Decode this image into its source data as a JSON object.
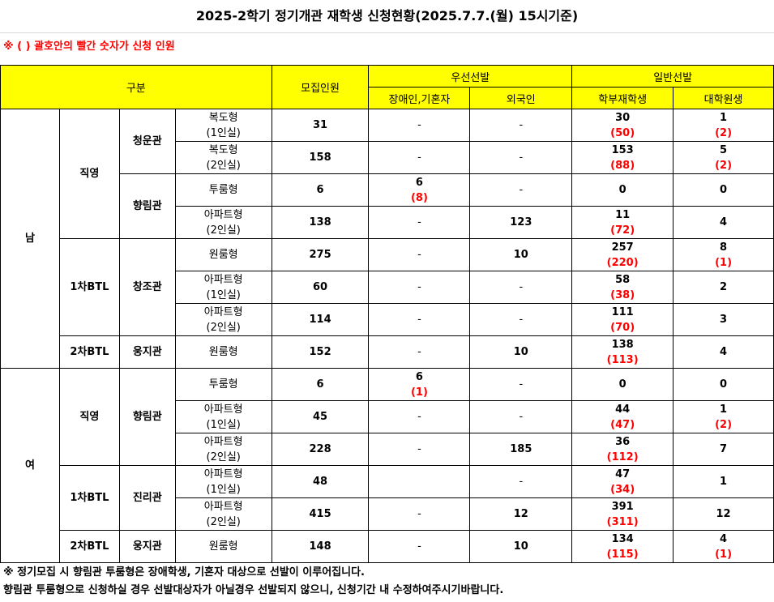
{
  "title": "2025-2학기 정기개관 재학생 신청현황(2025.7.7.(월) 15시기준)",
  "note_top": "※ ( ) 괄호안의 빨간 숫자가 신청 인원",
  "header": {
    "category": "구분",
    "quota": "모집인원",
    "priority": "우선선발",
    "priority_disabled": "장애인,기혼자",
    "priority_foreign": "외국인",
    "general": "일반선발",
    "general_undergrad": "학부재학생",
    "general_grad": "대학원생"
  },
  "groups": {
    "male": "남",
    "female": "여",
    "direct": "직영",
    "btl1": "1차BTL",
    "btl2": "2차BTL"
  },
  "halls": {
    "cheongun": "청운관",
    "hyangrim": "향림관",
    "changjo": "창조관",
    "ungji": "웅지관",
    "jinri": "진리관"
  },
  "rows": [
    {
      "type": [
        "복도형",
        "(1인실)"
      ],
      "quota": "31",
      "disabled": "-",
      "disabled_app": "",
      "foreign": "-",
      "foreign_app": "",
      "undergrad": "30",
      "undergrad_app": "(50)",
      "grad": "1",
      "grad_app": "(2)"
    },
    {
      "type": [
        "복도형",
        "(2인실)"
      ],
      "quota": "158",
      "disabled": "-",
      "disabled_app": "",
      "foreign": "-",
      "foreign_app": "",
      "undergrad": "153",
      "undergrad_app": "(88)",
      "grad": "5",
      "grad_app": "(2)"
    },
    {
      "type": [
        "투룸형"
      ],
      "quota": "6",
      "disabled": "6",
      "disabled_app": "(8)",
      "foreign": "-",
      "foreign_app": "",
      "undergrad": "0",
      "undergrad_app": "",
      "grad": "0",
      "grad_app": ""
    },
    {
      "type": [
        "아파트형",
        "(2인실)"
      ],
      "quota": "138",
      "disabled": "-",
      "disabled_app": "",
      "foreign": "123",
      "foreign_app": "",
      "undergrad": "11",
      "undergrad_app": "(72)",
      "grad": "4",
      "grad_app": ""
    },
    {
      "type": [
        "원룸형"
      ],
      "quota": "275",
      "disabled": "-",
      "disabled_app": "",
      "foreign": "10",
      "foreign_app": "",
      "undergrad": "257",
      "undergrad_app": "(220)",
      "grad": "8",
      "grad_app": "(1)"
    },
    {
      "type": [
        "아파트형",
        "(1인실)"
      ],
      "quota": "60",
      "disabled": "-",
      "disabled_app": "",
      "foreign": "-",
      "foreign_app": "",
      "undergrad": "58",
      "undergrad_app": "(38)",
      "grad": "2",
      "grad_app": ""
    },
    {
      "type": [
        "아파트형",
        "(2인실)"
      ],
      "quota": "114",
      "disabled": "-",
      "disabled_app": "",
      "foreign": "-",
      "foreign_app": "",
      "undergrad": "111",
      "undergrad_app": "(70)",
      "grad": "3",
      "grad_app": ""
    },
    {
      "type": [
        "원룸형"
      ],
      "quota": "152",
      "disabled": "-",
      "disabled_app": "",
      "foreign": "10",
      "foreign_app": "",
      "undergrad": "138",
      "undergrad_app": "(113)",
      "grad": "4",
      "grad_app": ""
    },
    {
      "type": [
        "투룸형"
      ],
      "quota": "6",
      "disabled": "6",
      "disabled_app": "(1)",
      "foreign": "-",
      "foreign_app": "",
      "undergrad": "0",
      "undergrad_app": "",
      "grad": "0",
      "grad_app": ""
    },
    {
      "type": [
        "아파트형",
        "(1인실)"
      ],
      "quota": "45",
      "disabled": "-",
      "disabled_app": "",
      "foreign": "-",
      "foreign_app": "",
      "undergrad": "44",
      "undergrad_app": "(47)",
      "grad": "1",
      "grad_app": "(2)"
    },
    {
      "type": [
        "아파트형",
        "(2인실)"
      ],
      "quota": "228",
      "disabled": "-",
      "disabled_app": "",
      "foreign": "185",
      "foreign_app": "",
      "undergrad": "36",
      "undergrad_app": "(112)",
      "grad": "7",
      "grad_app": ""
    },
    {
      "type": [
        "아파트형",
        "(1인실)"
      ],
      "quota": "48",
      "disabled": "",
      "disabled_app": "",
      "foreign": "-",
      "foreign_app": "",
      "undergrad": "47",
      "undergrad_app": "(34)",
      "grad": "1",
      "grad_app": ""
    },
    {
      "type": [
        "아파트형",
        "(2인실)"
      ],
      "quota": "415",
      "disabled": "-",
      "disabled_app": "",
      "foreign": "12",
      "foreign_app": "",
      "undergrad": "391",
      "undergrad_app": "(311)",
      "grad": "12",
      "grad_app": ""
    },
    {
      "type": [
        "원룸형"
      ],
      "quota": "148",
      "disabled": "-",
      "disabled_app": "",
      "foreign": "10",
      "foreign_app": "",
      "undergrad": "134",
      "undergrad_app": "(115)",
      "grad": "4",
      "grad_app": "(1)"
    }
  ],
  "footnotes": [
    "※ 정기모집 시 향림관 투룸형은 장애학생, 기혼자 대상으로 선발이 이루어집니다.",
    "향림관 투룸형으로 신청하실 경우 선발대상자가 아닐경우 선발되지 않으니, 신청기간 내 수정하여주시기바랍니다."
  ]
}
